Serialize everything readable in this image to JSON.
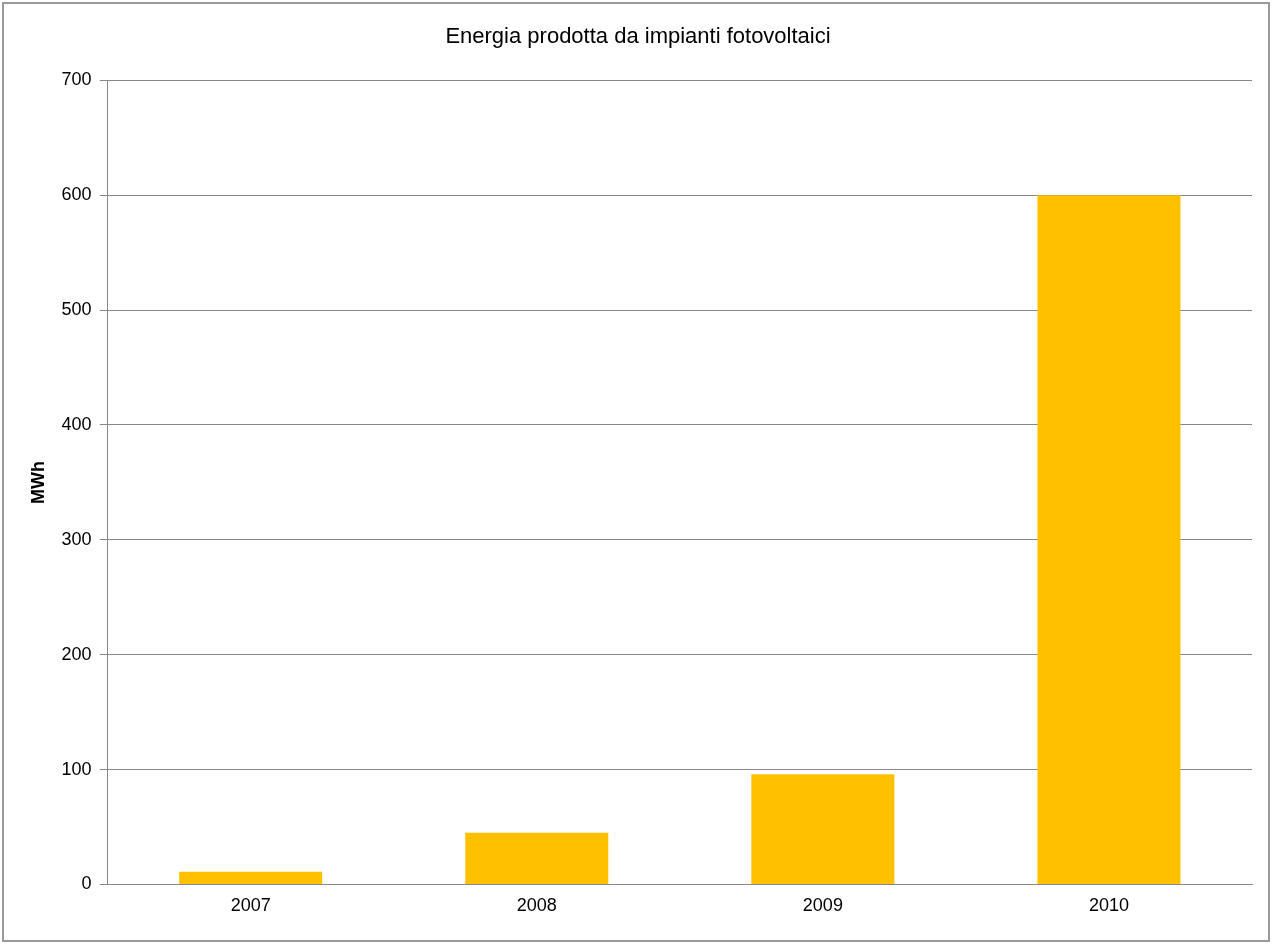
{
  "chart_data": {
    "type": "bar",
    "title": "Energia prodotta da impianti fotovoltaici",
    "ylabel": "MWh",
    "categories": [
      "2007",
      "2008",
      "2009",
      "2010"
    ],
    "values": [
      11,
      45,
      96,
      600
    ],
    "color": "#ffc000",
    "ylim": [
      0,
      700
    ],
    "yticks": [
      0,
      100,
      200,
      300,
      400,
      500,
      600,
      700
    ],
    "grid": "y",
    "legend": false
  }
}
